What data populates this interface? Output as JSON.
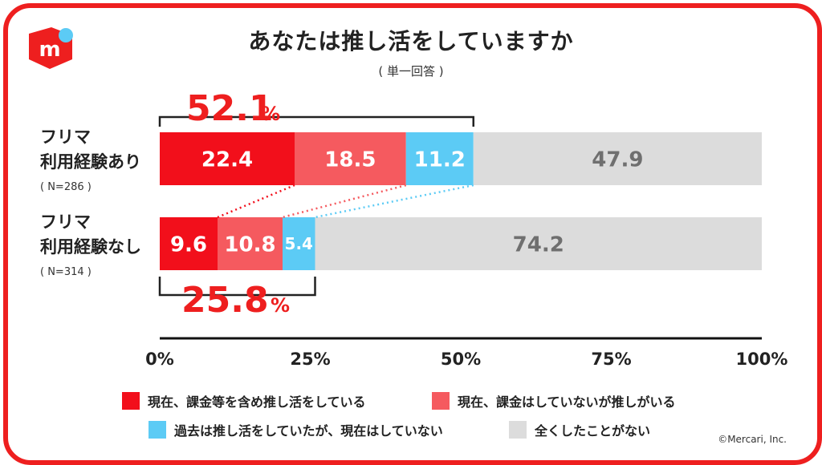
{
  "title": "あなたは推し活をしていますか",
  "subtitle": "( 単一回答 )",
  "copyright": "©Mercari, Inc.",
  "colors": {
    "frame": "#ee1f1f",
    "s1": "#f20f1b",
    "s2": "#f55a5f",
    "s3": "#5ccbf5",
    "s4": "#dcdcdc",
    "label_dark": "#6f6f6f",
    "accent": "#ee1f1f"
  },
  "chart_data": {
    "type": "bar",
    "orientation": "horizontal",
    "stacked": true,
    "title": "あなたは推し活をしていますか",
    "subtitle": "( 単一回答 )",
    "xlim": [
      0,
      100
    ],
    "xticks": [
      "0%",
      "25%",
      "50%",
      "75%",
      "100%"
    ],
    "grid": false,
    "legend_position": "bottom",
    "rows": [
      {
        "label_line1": "フリマ",
        "label_line2": "利用経験あり",
        "n": "( N=286 )",
        "bracket_label": "52.1",
        "bracket_unit": "%"
      },
      {
        "label_line1": "フリマ",
        "label_line2": "利用経験なし",
        "n": "( N=314 )",
        "bracket_label": "25.8",
        "bracket_unit": "%"
      }
    ],
    "series": [
      {
        "name": "現在、課金等を含め推し活をしている",
        "values": [
          22.4,
          9.6
        ],
        "labels": [
          "22.4",
          "9.6"
        ]
      },
      {
        "name": "現在、課金はしていないが推しがいる",
        "values": [
          18.5,
          10.8
        ],
        "labels": [
          "18.5",
          "10.8"
        ]
      },
      {
        "name": "過去は推し活をしていたが、現在はしていない",
        "values": [
          11.2,
          5.4
        ],
        "labels": [
          "11.2",
          "5.4"
        ]
      },
      {
        "name": "全くしたことがない",
        "values": [
          47.9,
          74.2
        ],
        "labels": [
          "47.9",
          "74.2"
        ]
      }
    ]
  }
}
